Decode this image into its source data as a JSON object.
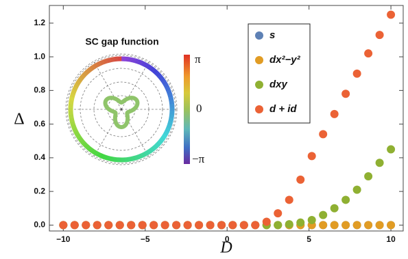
{
  "chart_data": {
    "type": "scatter",
    "x_label": "D",
    "y_label": "Δ",
    "x": [
      -10,
      -9.31,
      -8.62,
      -7.93,
      -7.24,
      -6.55,
      -5.86,
      -5.17,
      -4.48,
      -3.79,
      -3.1,
      -2.41,
      -1.72,
      -1.03,
      -0.34,
      0.34,
      1.03,
      1.72,
      2.41,
      3.1,
      3.79,
      4.48,
      5.17,
      5.86,
      6.55,
      7.24,
      7.93,
      8.62,
      9.31,
      10
    ],
    "series": [
      {
        "name": "s",
        "color": "#5e81b5",
        "values": [
          0,
          0,
          0,
          0,
          0,
          0,
          0,
          0,
          0,
          0,
          0,
          0,
          0,
          0,
          0,
          0,
          0,
          0,
          0,
          0,
          0,
          0,
          0,
          0,
          0,
          0,
          0,
          0,
          0,
          0
        ]
      },
      {
        "name": "dx²−y²",
        "color": "#e19c24",
        "values": [
          0,
          0,
          0,
          0,
          0,
          0,
          0,
          0,
          0,
          0,
          0,
          0,
          0,
          0,
          0,
          0,
          0,
          0,
          0,
          0,
          0,
          0,
          0,
          0,
          0,
          0,
          0,
          0,
          0,
          0
        ]
      },
      {
        "name": "dxy",
        "color": "#8fb032",
        "values": [
          0,
          0,
          0,
          0,
          0,
          0,
          0,
          0,
          0,
          0,
          0,
          0,
          0,
          0,
          0,
          0,
          0,
          0,
          0,
          0,
          0.005,
          0.015,
          0.03,
          0.06,
          0.1,
          0.15,
          0.21,
          0.29,
          0.37,
          0.45
        ]
      },
      {
        "name": "d + id",
        "color": "#eb6235",
        "values": [
          0,
          0,
          0,
          0,
          0,
          0,
          0,
          0,
          0,
          0,
          0,
          0,
          0,
          0,
          0,
          0,
          0,
          0,
          0.02,
          0.07,
          0.15,
          0.27,
          0.41,
          0.54,
          0.66,
          0.78,
          0.9,
          1.02,
          1.13,
          1.25
        ]
      }
    ],
    "xlim": [
      -10.85,
      10.75
    ],
    "ylim": [
      -0.035,
      1.305
    ],
    "xticks": [
      {
        "value": -10,
        "label": "−10"
      },
      {
        "value": -5,
        "label": "−5"
      },
      0,
      5,
      10
    ],
    "yticks": [
      {
        "value": 0,
        "label": "0.0"
      },
      {
        "value": 0.2,
        "label": "0.2"
      },
      {
        "value": 0.4,
        "label": "0.4"
      },
      {
        "value": 0.6,
        "label": "0.6"
      },
      {
        "value": 0.8,
        "label": "0.8"
      },
      {
        "value": 1.0,
        "label": "1.0"
      },
      {
        "value": 1.2,
        "label": "1.2"
      }
    ],
    "legend": "upper-center",
    "inset": {
      "title": "SC gap function",
      "colorbar_labels": [
        "π",
        "0",
        "−π"
      ]
    }
  }
}
